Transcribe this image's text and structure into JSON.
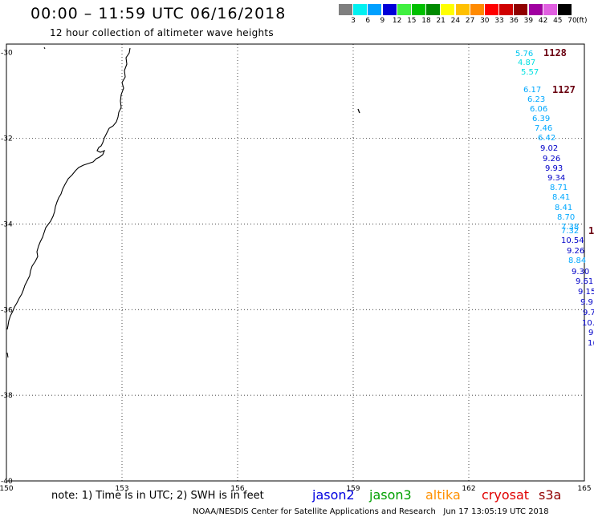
{
  "header": {
    "title": "00:00 – 11:59 UTC 06/16/2018",
    "subtitle": "12 hour collection of altimeter wave heights"
  },
  "legend": {
    "unit": "(ft)",
    "bins": [
      {
        "label": "3",
        "color": "#7f7f7f"
      },
      {
        "label": "6",
        "color": "#00f0f0"
      },
      {
        "label": "9",
        "color": "#00a0ff"
      },
      {
        "label": "12",
        "color": "#0000d8"
      },
      {
        "label": "15",
        "color": "#40f040"
      },
      {
        "label": "18",
        "color": "#00c000"
      },
      {
        "label": "21",
        "color": "#008a00"
      },
      {
        "label": "24",
        "color": "#ffff00"
      },
      {
        "label": "27",
        "color": "#ffc000"
      },
      {
        "label": "30",
        "color": "#ff8a00"
      },
      {
        "label": "33",
        "color": "#ff0000"
      },
      {
        "label": "36",
        "color": "#d00000"
      },
      {
        "label": "39",
        "color": "#900000"
      },
      {
        "label": "42",
        "color": "#a000a0"
      },
      {
        "label": "45",
        "color": "#e060e0"
      },
      {
        "label": "70",
        "color": "#000000"
      }
    ]
  },
  "map": {
    "lon_labels": [
      "150",
      "153",
      "156",
      "159",
      "162",
      "165"
    ],
    "lat_labels": [
      "-30",
      "-32",
      "-34",
      "-36",
      "-38",
      "-40"
    ],
    "lat_values": [
      -30,
      -32,
      -34,
      -36,
      -38,
      -40
    ]
  },
  "tracks": [
    {
      "cycle": "1128",
      "observations": [
        {
          "value": "5.76",
          "color": "#00c8f0"
        },
        {
          "value": "4.87",
          "color": "#00e0e0"
        },
        {
          "value": "5.57",
          "color": "#00e0e0"
        }
      ]
    },
    {
      "cycle": "1127",
      "observations": [
        {
          "value": "6.17",
          "color": "#00a8ff"
        },
        {
          "value": "6.23",
          "color": "#00a8ff"
        },
        {
          "value": "6.06",
          "color": "#00a8ff"
        },
        {
          "value": "6.39",
          "color": "#00a8ff"
        },
        {
          "value": "7.46",
          "color": "#00a8ff"
        },
        {
          "value": "6.42",
          "color": "#00a8ff"
        },
        {
          "value": "9.02",
          "color": "#0000c8"
        },
        {
          "value": "9.26",
          "color": "#0000c8"
        },
        {
          "value": "9.93",
          "color": "#0000c8"
        },
        {
          "value": "9.34",
          "color": "#0000c8"
        },
        {
          "value": "8.71",
          "color": "#00a8ff"
        },
        {
          "value": "8.41",
          "color": "#00a8ff"
        },
        {
          "value": "8.41",
          "color": "#00a8ff"
        },
        {
          "value": "8.70",
          "color": "#00a8ff"
        },
        {
          "value": "7.38",
          "color": "#00a8ff"
        },
        {
          "value": "7.32",
          "color": "#00a8ff"
        },
        {
          "value": "10.54",
          "color": "#0000c8"
        },
        {
          "value": "9.26",
          "color": "#0000c8"
        },
        {
          "value": "8.84",
          "color": "#00a8ff"
        },
        {
          "value": "9.30",
          "color": "#0000c8"
        },
        {
          "value": "9.61",
          "color": "#0000c8"
        },
        {
          "value": "9.15",
          "color": "#0000c8"
        },
        {
          "value": "9.9",
          "color": "#0000c8"
        },
        {
          "value": "9.7",
          "color": "#0000c8"
        },
        {
          "value": "10.",
          "color": "#0000c8"
        },
        {
          "value": "9",
          "color": "#0000c8"
        },
        {
          "value": "1(",
          "color": "#0000c8"
        }
      ]
    },
    {
      "cycle": "1",
      "observations": []
    }
  ],
  "footer": {
    "note": "note: 1) Time is in UTC; 2) SWH is in feet",
    "satellites": [
      {
        "name": "jason2",
        "color": "#0000e0"
      },
      {
        "name": "jason3",
        "color": "#00a000"
      },
      {
        "name": "altika",
        "color": "#ff9000"
      },
      {
        "name": "cryosat",
        "color": "#e00000"
      },
      {
        "name": "s3a",
        "color": "#900000"
      }
    ],
    "credit": "NOAA/NESDIS Center for Satellite Applications and Research   Jun 17 13:05:19 UTC 2018"
  }
}
